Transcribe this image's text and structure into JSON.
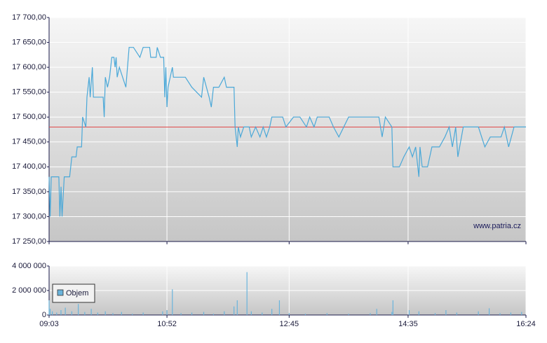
{
  "chart_data": [
    {
      "type": "line",
      "color": "#4aa8d8",
      "ref_line": 17480,
      "ref_color": "#e04848",
      "watermark": "www.patria.cz",
      "grid": true,
      "xlim": [
        "09:03",
        "16:24"
      ],
      "ylim": [
        17250,
        17700
      ],
      "yticks": [
        {
          "value": 17250,
          "label": "17 250,00"
        },
        {
          "value": 17300,
          "label": "17 300,00"
        },
        {
          "value": 17350,
          "label": "17 350,00"
        },
        {
          "value": 17400,
          "label": "17 400,00"
        },
        {
          "value": 17450,
          "label": "17 450,00"
        },
        {
          "value": 17500,
          "label": "17 500,00"
        },
        {
          "value": 17550,
          "label": "17 550,00"
        },
        {
          "value": 17600,
          "label": "17 600,00"
        },
        {
          "value": 17650,
          "label": "17 650,00"
        },
        {
          "value": 17700,
          "label": "17 700,00"
        }
      ],
      "x": [
        "09:03",
        "09:04",
        "09:05",
        "09:12",
        "09:13",
        "09:14",
        "09:15",
        "09:17",
        "09:22",
        "09:24",
        "09:28",
        "09:29",
        "09:33",
        "09:34",
        "09:37",
        "09:38",
        "09:40",
        "09:41",
        "09:43",
        "09:44",
        "09:53",
        "09:54",
        "09:55",
        "09:57",
        "09:59",
        "10:01",
        "10:03",
        "10:04",
        "10:05",
        "10:06",
        "10:08",
        "10:14",
        "10:17",
        "10:21",
        "10:27",
        "10:30",
        "10:36",
        "10:37",
        "10:42",
        "10:43",
        "10:46",
        "10:49",
        "10:50",
        "10:51",
        "10:52",
        "10:53",
        "10:57",
        "10:58",
        "11:09",
        "11:15",
        "11:24",
        "11:26",
        "11:31",
        "11:33",
        "11:35",
        "11:40",
        "11:45",
        "11:47",
        "11:54",
        "11:55",
        "11:57",
        "11:58",
        "12:00",
        "12:03",
        "12:08",
        "12:10",
        "12:14",
        "12:18",
        "12:21",
        "12:24",
        "12:27",
        "12:29",
        "12:39",
        "12:42",
        "12:49",
        "12:55",
        "13:01",
        "13:04",
        "13:08",
        "13:11",
        "13:16",
        "13:22",
        "13:26",
        "13:31",
        "13:40",
        "14:08",
        "14:11",
        "14:14",
        "14:20",
        "14:21",
        "14:27",
        "14:31",
        "14:36",
        "14:39",
        "14:42",
        "14:45",
        "14:46",
        "14:48",
        "14:53",
        "14:57",
        "15:04",
        "15:09",
        "15:13",
        "15:16",
        "15:19",
        "15:21",
        "15:26",
        "15:40",
        "15:46",
        "15:51",
        "16:01",
        "16:04",
        "16:08",
        "16:13",
        "16:24"
      ],
      "values": [
        17380,
        17300,
        17380,
        17380,
        17300,
        17360,
        17300,
        17380,
        17380,
        17420,
        17420,
        17440,
        17440,
        17500,
        17480,
        17540,
        17580,
        17540,
        17600,
        17540,
        17540,
        17500,
        17580,
        17560,
        17580,
        17620,
        17620,
        17600,
        17620,
        17580,
        17600,
        17560,
        17640,
        17640,
        17620,
        17640,
        17640,
        17620,
        17620,
        17640,
        17620,
        17620,
        17540,
        17600,
        17520,
        17560,
        17600,
        17580,
        17580,
        17560,
        17540,
        17580,
        17540,
        17520,
        17560,
        17560,
        17580,
        17560,
        17560,
        17480,
        17440,
        17480,
        17460,
        17480,
        17480,
        17460,
        17480,
        17460,
        17480,
        17460,
        17480,
        17500,
        17500,
        17480,
        17500,
        17500,
        17480,
        17500,
        17480,
        17500,
        17500,
        17500,
        17480,
        17460,
        17500,
        17500,
        17460,
        17500,
        17480,
        17400,
        17400,
        17420,
        17440,
        17420,
        17440,
        17380,
        17440,
        17400,
        17400,
        17440,
        17440,
        17460,
        17480,
        17440,
        17480,
        17420,
        17480,
        17480,
        17440,
        17460,
        17460,
        17480,
        17440,
        17480,
        17480
      ]
    },
    {
      "type": "bar",
      "grid": true,
      "xlim": [
        "09:03",
        "16:24"
      ],
      "ylim": [
        0,
        4000000
      ],
      "xticks": [
        "09:03",
        "10:52",
        "12:45",
        "14:35",
        "16:24"
      ],
      "yticks": [
        0,
        {
          "value": 2000000,
          "label": "2 000 000"
        },
        {
          "value": 4000000,
          "label": "4 000 000"
        }
      ],
      "series": [
        {
          "name": "Objem",
          "color": "#6ab4dc",
          "x": [
            "09:03",
            "09:04",
            "09:06",
            "09:10",
            "09:14",
            "09:18",
            "09:24",
            "09:30",
            "09:36",
            "09:42",
            "09:48",
            "09:55",
            "10:02",
            "10:10",
            "10:20",
            "10:30",
            "10:48",
            "10:52",
            "10:57",
            "11:05",
            "11:15",
            "11:26",
            "11:35",
            "11:45",
            "11:54",
            "11:57",
            "12:06",
            "12:10",
            "12:20",
            "12:29",
            "12:36",
            "12:45",
            "13:00",
            "13:20",
            "13:40",
            "14:00",
            "14:06",
            "14:20",
            "14:21",
            "14:36",
            "14:45",
            "15:00",
            "15:10",
            "15:20",
            "15:40",
            "15:50",
            "16:00",
            "16:10",
            "16:20"
          ],
          "values": [
            1200000,
            500000,
            300000,
            200000,
            400000,
            600000,
            300000,
            900000,
            250000,
            500000,
            200000,
            300000,
            150000,
            250000,
            100000,
            200000,
            300000,
            400000,
            2100000,
            150000,
            200000,
            250000,
            100000,
            300000,
            700000,
            1200000,
            3500000,
            300000,
            200000,
            500000,
            1200000,
            150000,
            100000,
            150000,
            100000,
            150000,
            500000,
            250000,
            1200000,
            400000,
            300000,
            150000,
            400000,
            200000,
            300000,
            550000,
            150000,
            200000,
            250000
          ]
        }
      ]
    }
  ]
}
